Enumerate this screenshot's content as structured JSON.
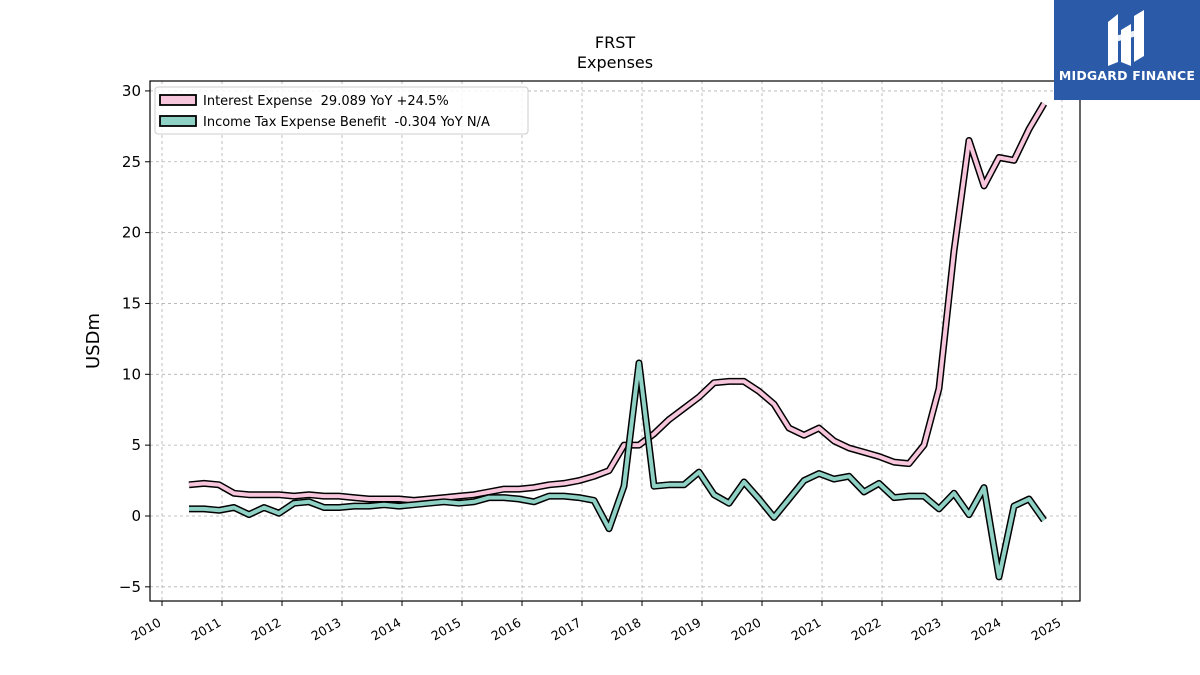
{
  "brand": {
    "name": "MIDGARD FINANCE",
    "color": "#2a5aa8"
  },
  "chart_data": {
    "type": "line",
    "title": "FRST",
    "subtitle": "Expenses",
    "ylabel": "USDm",
    "xlabel": "",
    "xlim": [
      2009.8,
      2025.3
    ],
    "ylim": [
      -6,
      30.7
    ],
    "yticks": [
      -5,
      0,
      5,
      10,
      15,
      20,
      25,
      30
    ],
    "xticks": [
      "2010",
      "2011",
      "2012",
      "2013",
      "2014",
      "2015",
      "2016",
      "2017",
      "2018",
      "2019",
      "2020",
      "2021",
      "2022",
      "2023",
      "2024",
      "2025"
    ],
    "grid": true,
    "legend_position": "top-left",
    "series": [
      {
        "name": "Interest Expense  29.089 YoY +24.5%",
        "color": "#f7c6dc",
        "x": [
          2010.45,
          2010.7,
          2010.95,
          2011.2,
          2011.45,
          2011.7,
          2011.95,
          2012.2,
          2012.45,
          2012.7,
          2012.95,
          2013.2,
          2013.45,
          2013.7,
          2013.95,
          2014.2,
          2014.45,
          2014.7,
          2014.95,
          2015.2,
          2015.45,
          2015.7,
          2015.95,
          2016.2,
          2016.45,
          2016.7,
          2016.95,
          2017.2,
          2017.45,
          2017.7,
          2017.95,
          2018.2,
          2018.45,
          2018.7,
          2018.95,
          2019.2,
          2019.45,
          2019.7,
          2019.95,
          2020.2,
          2020.45,
          2020.7,
          2020.95,
          2021.2,
          2021.45,
          2021.7,
          2021.95,
          2022.2,
          2022.45,
          2022.7,
          2022.95,
          2023.2,
          2023.45,
          2023.7,
          2023.95,
          2024.2,
          2024.45,
          2024.7
        ],
        "values": [
          2.2,
          2.3,
          2.2,
          1.6,
          1.5,
          1.5,
          1.5,
          1.4,
          1.5,
          1.4,
          1.4,
          1.3,
          1.2,
          1.2,
          1.2,
          1.1,
          1.2,
          1.3,
          1.4,
          1.5,
          1.7,
          1.9,
          1.9,
          2.0,
          2.2,
          2.3,
          2.5,
          2.8,
          3.2,
          5.0,
          5.0,
          5.8,
          6.8,
          7.6,
          8.4,
          9.4,
          9.5,
          9.5,
          8.8,
          7.9,
          6.2,
          5.7,
          6.2,
          5.3,
          4.8,
          4.5,
          4.2,
          3.8,
          3.7,
          5.0,
          9.0,
          18.7,
          26.5,
          23.3,
          25.3,
          25.1,
          27.3,
          29.1
        ]
      },
      {
        "name": "Income Tax Expense Benefit  -0.304 YoY N/A",
        "color": "#8fd1c5",
        "x": [
          2010.45,
          2010.7,
          2010.95,
          2011.2,
          2011.45,
          2011.7,
          2011.95,
          2012.2,
          2012.45,
          2012.7,
          2012.95,
          2013.2,
          2013.45,
          2013.7,
          2013.95,
          2014.2,
          2014.45,
          2014.7,
          2014.95,
          2015.2,
          2015.45,
          2015.7,
          2015.95,
          2016.2,
          2016.45,
          2016.7,
          2016.95,
          2017.2,
          2017.45,
          2017.7,
          2017.95,
          2018.2,
          2018.45,
          2018.7,
          2018.95,
          2019.2,
          2019.45,
          2019.7,
          2019.95,
          2020.2,
          2020.45,
          2020.7,
          2020.95,
          2021.2,
          2021.45,
          2021.7,
          2021.95,
          2022.2,
          2022.45,
          2022.7,
          2022.95,
          2023.2,
          2023.45,
          2023.7,
          2023.95,
          2024.2,
          2024.45,
          2024.7
        ],
        "values": [
          0.5,
          0.5,
          0.4,
          0.6,
          0.1,
          0.6,
          0.2,
          0.9,
          1.0,
          0.6,
          0.6,
          0.7,
          0.7,
          0.8,
          0.7,
          0.8,
          0.9,
          1.0,
          0.9,
          1.0,
          1.3,
          1.3,
          1.2,
          1.0,
          1.4,
          1.4,
          1.3,
          1.1,
          -0.9,
          2.1,
          10.8,
          2.1,
          2.2,
          2.2,
          3.1,
          1.5,
          0.9,
          2.4,
          1.2,
          -0.1,
          1.2,
          2.5,
          3.0,
          2.6,
          2.8,
          1.7,
          2.3,
          1.3,
          1.4,
          1.4,
          0.5,
          1.6,
          0.1,
          2.0,
          -4.3,
          0.7,
          1.2,
          -0.3
        ]
      }
    ]
  }
}
